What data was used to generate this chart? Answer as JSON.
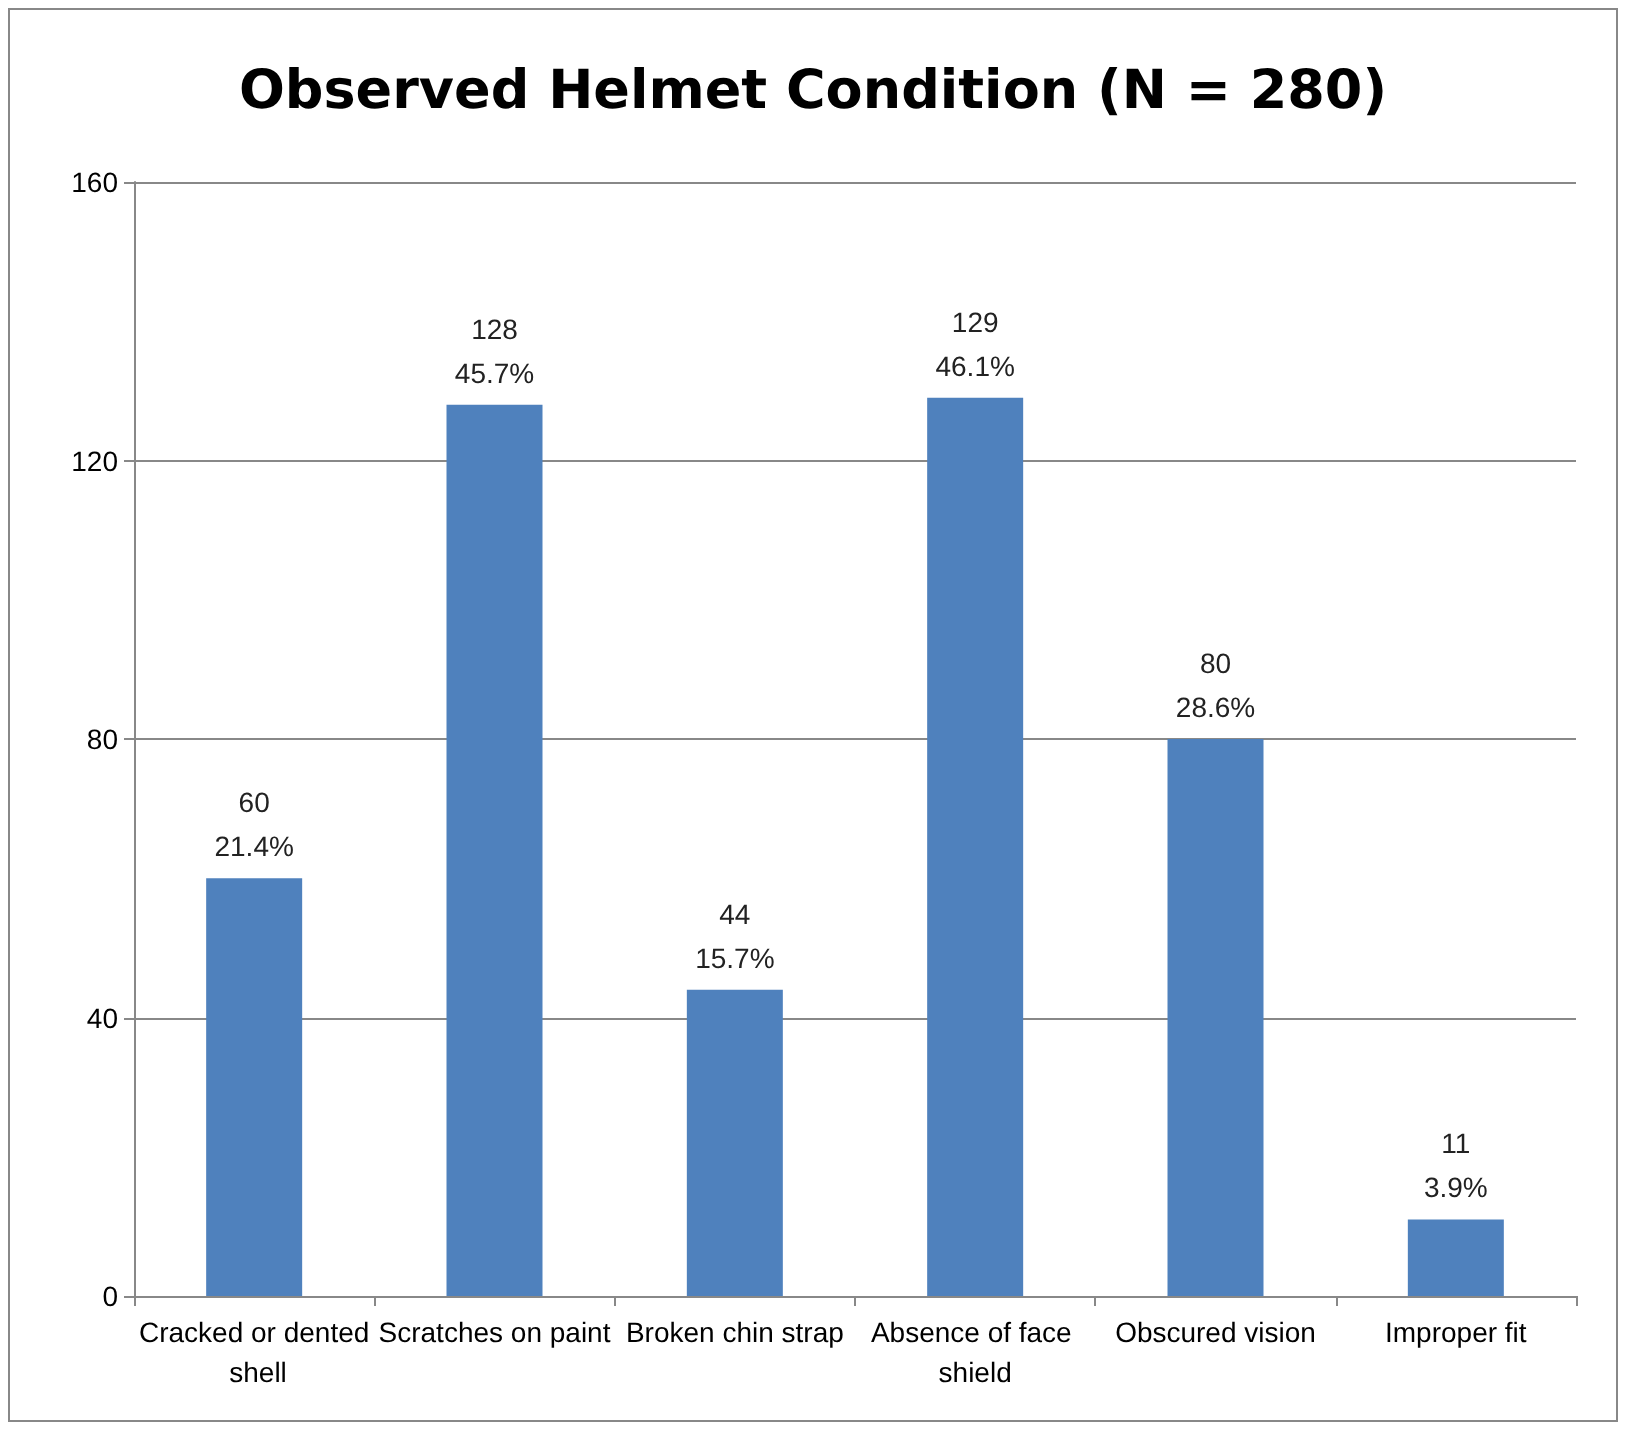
{
  "chart_data": {
    "type": "bar",
    "title": "Observed Helmet Condition (N = 280)",
    "categories": [
      "Cracked or dented shell",
      "Scratches on paint",
      "Broken chin strap",
      "Absence of face shield",
      "Obscured vision",
      "Improper fit"
    ],
    "values": [
      60,
      128,
      44,
      129,
      80,
      11
    ],
    "value_labels": [
      "60\n21.4%",
      "128\n45.7%",
      "44\n15.7%",
      "129\n46.1%",
      "80\n28.6%",
      "11\n3.9%"
    ],
    "color": "#4f81bd",
    "ylim": [
      0,
      160
    ],
    "yticks": [
      0,
      40,
      80,
      120,
      160
    ],
    "grid": "y"
  }
}
